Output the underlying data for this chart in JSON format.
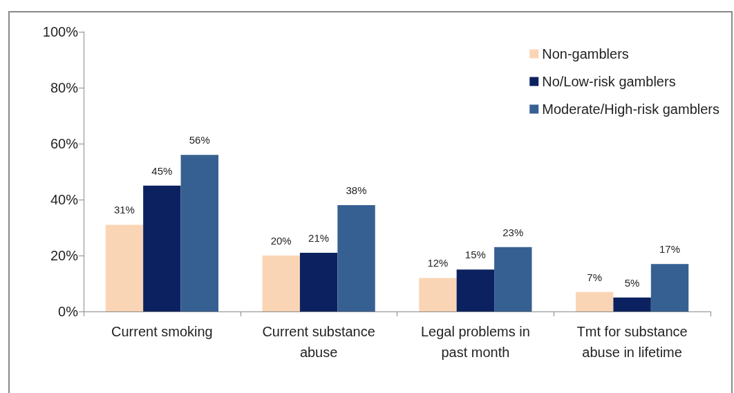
{
  "chart_data": {
    "type": "bar",
    "categories": [
      "Current smoking",
      "Current substance\nabuse",
      "Legal problems in\npast month",
      "Tmt for substance\nabuse in lifetime"
    ],
    "series": [
      {
        "name": "Non-gamblers",
        "color": "#fad5b5",
        "values": [
          31,
          20,
          12,
          7
        ]
      },
      {
        "name": "No/Low-risk gamblers",
        "color": "#0c2260",
        "values": [
          45,
          21,
          15,
          5
        ]
      },
      {
        "name": "Moderate/High-risk gamblers",
        "color": "#376092",
        "values": [
          56,
          38,
          23,
          17
        ]
      }
    ],
    "ylim": [
      0,
      100
    ],
    "yticks": [
      {
        "value": 0,
        "label": "0%"
      },
      {
        "value": 20,
        "label": "20%"
      },
      {
        "value": 40,
        "label": "40%"
      },
      {
        "value": 60,
        "label": "60%"
      },
      {
        "value": 80,
        "label": "80%"
      },
      {
        "value": 100,
        "label": "100%"
      }
    ],
    "value_labels": [
      [
        "31%",
        "20%",
        "12%",
        "7%"
      ],
      [
        "45%",
        "21%",
        "15%",
        "5%"
      ],
      [
        "56%",
        "38%",
        "23%",
        "17%"
      ]
    ],
    "grid": false,
    "legend": "top right"
  }
}
